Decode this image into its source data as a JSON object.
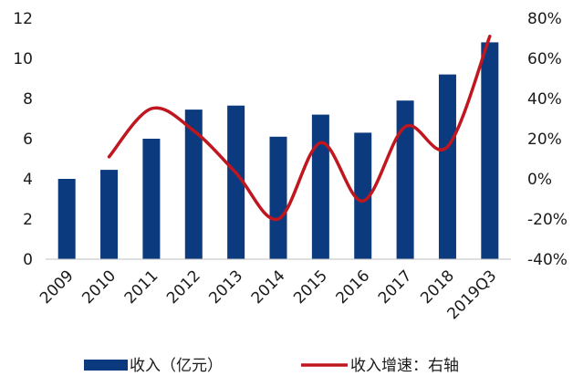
{
  "chart_data": {
    "type": "bar",
    "categories": [
      "2009",
      "2010",
      "2011",
      "2012",
      "2013",
      "2014",
      "2015",
      "2016",
      "2017",
      "2018",
      "2019Q3"
    ],
    "series": [
      {
        "name": "收入（亿元）",
        "type": "bar",
        "axis": "left",
        "color": "#0b3a7e",
        "values": [
          4.0,
          4.45,
          6.0,
          7.45,
          7.65,
          6.1,
          7.2,
          6.3,
          7.9,
          9.2,
          10.8
        ]
      },
      {
        "name": "收入增速：右轴",
        "type": "line",
        "axis": "right",
        "color": "#c0161f",
        "values": [
          null,
          11,
          35,
          24,
          3,
          -20,
          18,
          -11,
          26,
          16,
          71
        ]
      }
    ],
    "left_axis": {
      "min": 0,
      "max": 12,
      "ticks": [
        "0",
        "2",
        "4",
        "6",
        "8",
        "10",
        "12"
      ]
    },
    "right_axis": {
      "min": -40,
      "max": 80,
      "unit": "%",
      "ticks": [
        "-40%",
        "-20%",
        "0%",
        "20%",
        "40%",
        "60%",
        "80%"
      ]
    },
    "grid": false,
    "legend_position": "bottom"
  }
}
